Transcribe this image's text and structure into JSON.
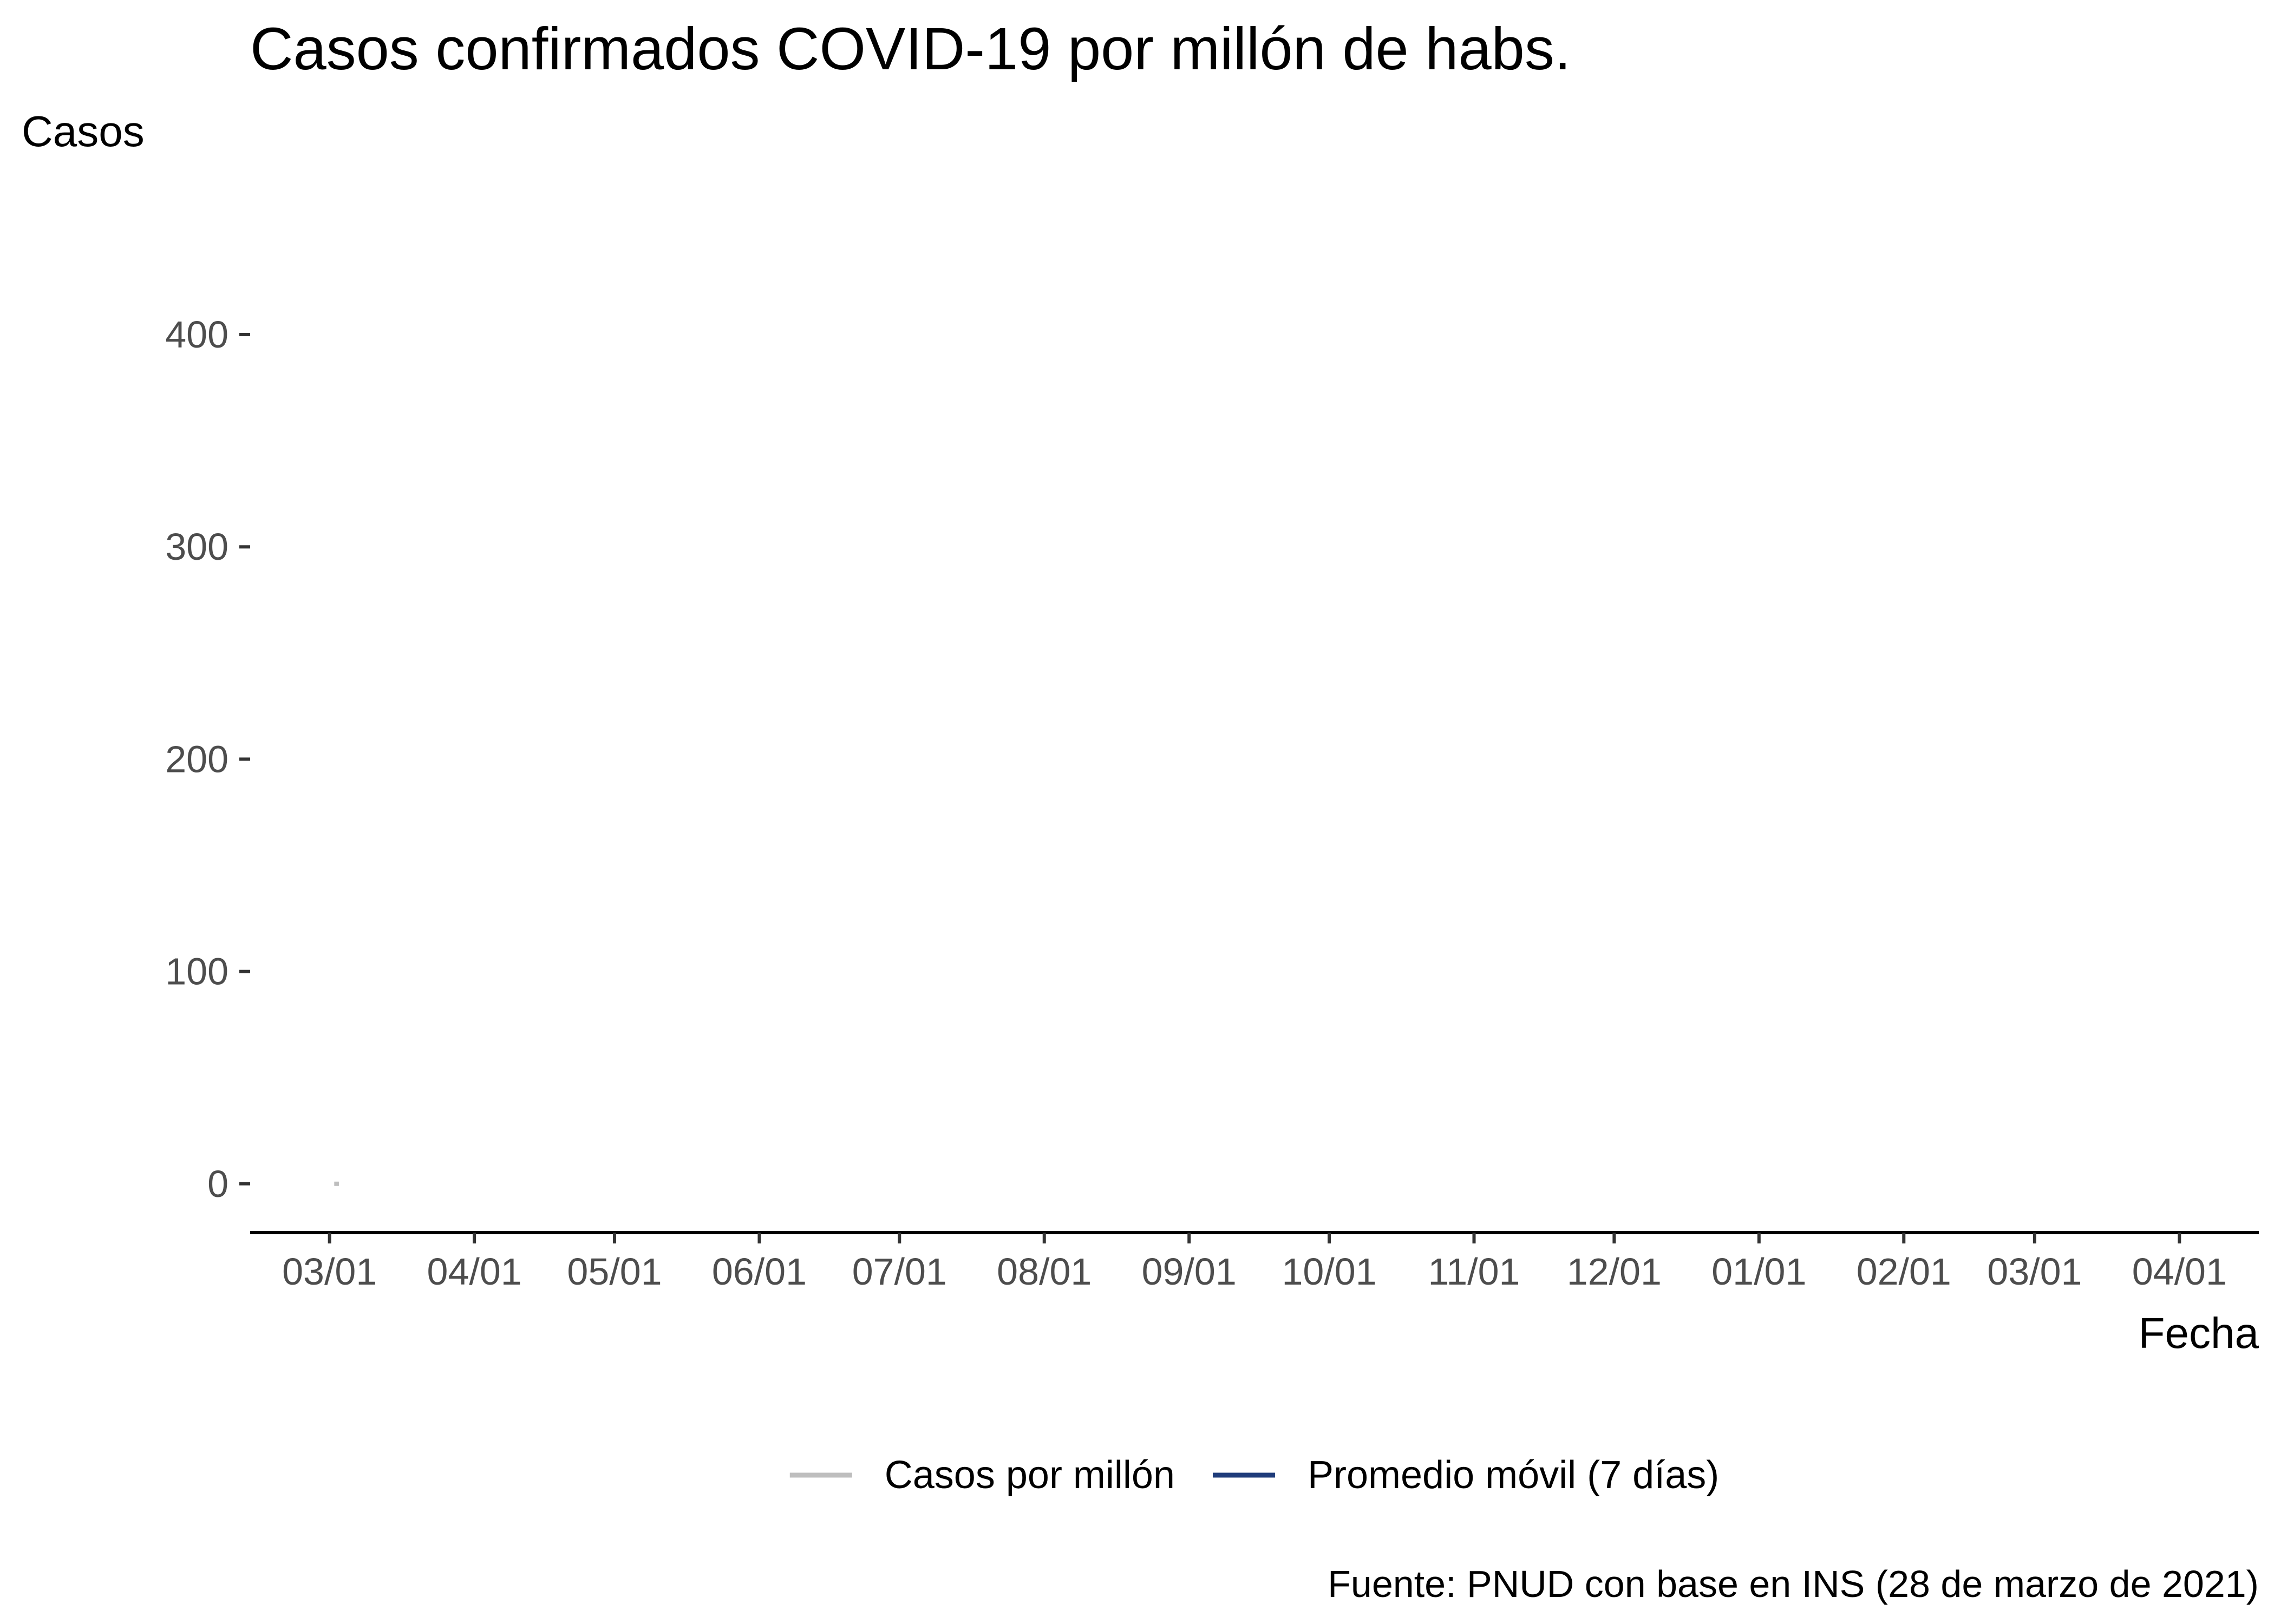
{
  "chart_data": {
    "type": "line",
    "title": "Casos confirmados COVID-19 por millón de habs.",
    "xlabel": "Fecha",
    "ylabel": "Casos",
    "caption": "Fuente: PNUD con base en INS (28 de marzo de 2021)",
    "ylim": [
      -23,
      425
    ],
    "y_ticks": [
      0,
      100,
      200,
      300,
      400
    ],
    "x_ticks": [
      "03/01",
      "04/01",
      "05/01",
      "06/01",
      "07/01",
      "08/01",
      "09/01",
      "10/01",
      "11/01",
      "12/01",
      "01/01",
      "02/01",
      "03/01",
      "04/01"
    ],
    "x_tick_dates": [
      "2020-03-01",
      "2020-04-01",
      "2020-05-01",
      "2020-06-01",
      "2020-07-01",
      "2020-08-01",
      "2020-09-01",
      "2020-10-01",
      "2020-11-01",
      "2020-12-01",
      "2021-01-01",
      "2021-02-01",
      "2021-03-01",
      "2021-04-01"
    ],
    "xlim": [
      "2020-02-13",
      "2021-04-18"
    ],
    "grid": false,
    "legend_position": "bottom",
    "series": [
      {
        "name": "Casos por millón",
        "color": "#bebebe",
        "points": [
          {
            "x": "2020-03-02",
            "y": 0
          },
          {
            "x": "2020-03-03",
            "y": 0
          }
        ]
      },
      {
        "name": "Promedio móvil (7 días)",
        "color": "#1f3c7a",
        "points": []
      }
    ]
  }
}
